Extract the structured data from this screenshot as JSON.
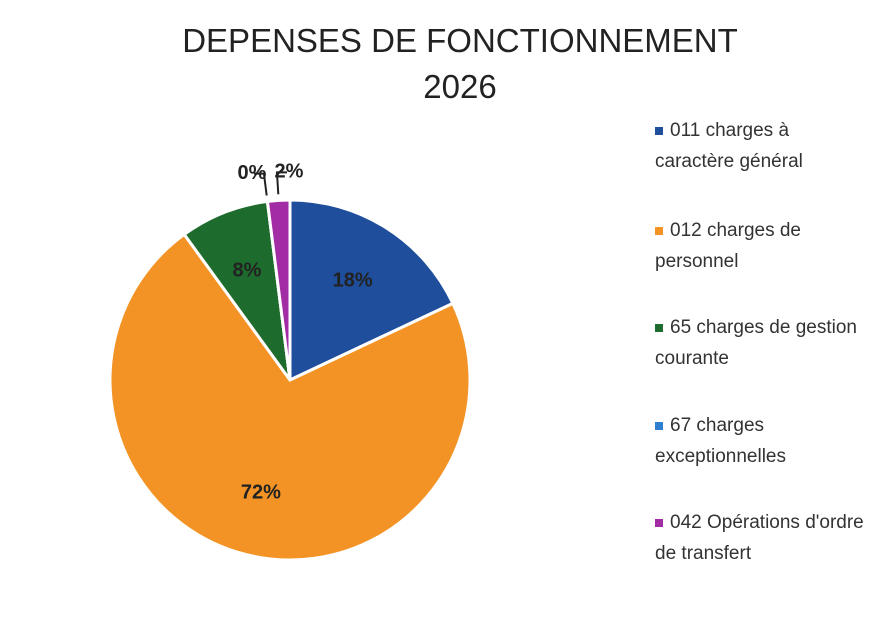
{
  "chart_data": {
    "type": "pie",
    "title": "DEPENSES DE FONCTIONNEMENT 2026",
    "categories": [
      "011 charges à caractère général",
      "012 charges de personnel",
      "65 charges de gestion courante",
      "67 charges exceptionnelles",
      "042 Opérations d'ordre de transfert"
    ],
    "values": [
      18,
      72,
      8,
      0,
      2
    ],
    "value_labels": [
      "18%",
      "72%",
      "8%",
      "0%",
      "2%"
    ],
    "colors": [
      "#1f4e9c",
      "#f39325",
      "#1e6b2e",
      "#2f7fd1",
      "#a22ca3"
    ],
    "legend": "right"
  }
}
